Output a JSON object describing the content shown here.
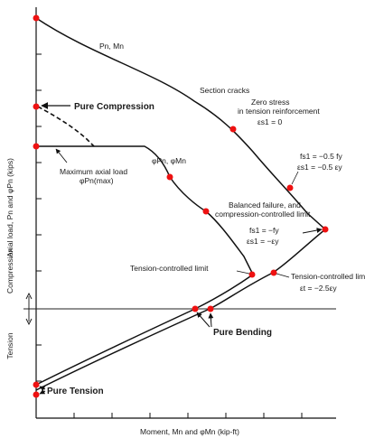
{
  "axes": {
    "y_label": "Axial load, Pn and φPn (kips)",
    "x_label": "Moment, Mn and φMn (kip-ft)",
    "compression_label": "Compression",
    "tension_label": "Tension"
  },
  "curves": {
    "nominal": "Pn, Mn",
    "design": "φPn, φMn"
  },
  "annotations": {
    "pure_compression": "Pure Compression",
    "max_axial_1": "Maximum axial load",
    "max_axial_2": "φPn(max)",
    "section_cracks": "Section cracks",
    "zero_stress_1": "Zero stress",
    "zero_stress_2": "in tension reinforcement",
    "zero_stress_3": "εs1 = 0",
    "fs_line1": "fs1 = −0.5 fy",
    "fs_line2": "εs1 = −0.5 εy",
    "balanced_1": "Balanced failure, and",
    "balanced_2": "compression-controlled limit",
    "balanced_3": "fs1 = −fy",
    "balanced_4": "εs1 = −εy",
    "tension_limit_left": "Tension-controlled limit",
    "tension_limit_right_1": "Tension-controlled lim",
    "tension_limit_right_2": "εt = −2.5εy",
    "pure_bending": "Pure Bending",
    "pure_tension": "Pure Tension"
  },
  "colors": {
    "point": "#ee1111",
    "line": "#111111"
  }
}
